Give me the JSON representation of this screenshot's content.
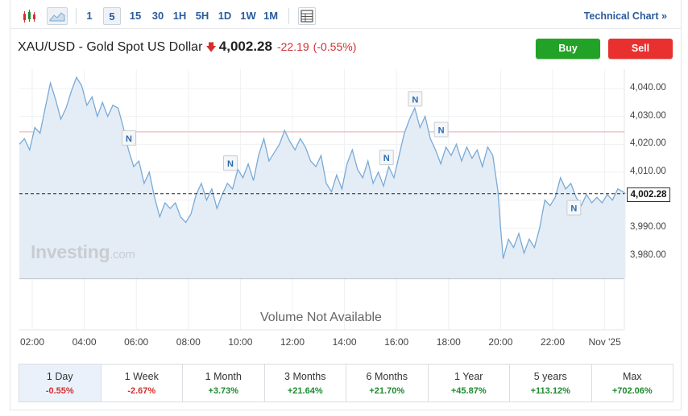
{
  "toolbar": {
    "intervals": [
      "1",
      "5",
      "15",
      "30",
      "1H",
      "5H",
      "1D",
      "1W",
      "1M"
    ],
    "active_interval": "5",
    "technical_chart_label": "Technical Chart »"
  },
  "header": {
    "instrument": "XAU/USD - Gold Spot US Dollar",
    "direction_icon": "down-arrow-icon",
    "price": "4,002.28",
    "change": "-22.19",
    "change_pct": "(-0.55%)"
  },
  "buttons": {
    "buy": "Buy",
    "sell": "Sell"
  },
  "watermark": {
    "brand": "Investing",
    "suffix": ".com"
  },
  "volume_text": "Volume Not Available",
  "colors": {
    "accent": "#2a5c9a",
    "positive": "#1d8a2f",
    "negative": "#d32f2f",
    "buy": "#22a327",
    "sell": "#e8312f",
    "series_line": "#7aaad6",
    "area_fill": "#e4edf6"
  },
  "periods": [
    {
      "label": "1 Day",
      "change": "-0.55%",
      "sign": "neg",
      "active": true
    },
    {
      "label": "1 Week",
      "change": "-2.67%",
      "sign": "neg",
      "active": false
    },
    {
      "label": "1 Month",
      "change": "+3.73%",
      "sign": "pos",
      "active": false
    },
    {
      "label": "3 Months",
      "change": "+21.64%",
      "sign": "pos",
      "active": false
    },
    {
      "label": "6 Months",
      "change": "+21.70%",
      "sign": "pos",
      "active": false
    },
    {
      "label": "1 Year",
      "change": "+45.87%",
      "sign": "pos",
      "active": false
    },
    {
      "label": "5 years",
      "change": "+113.12%",
      "sign": "pos",
      "active": false
    },
    {
      "label": "Max",
      "change": "+702.06%",
      "sign": "pos",
      "active": false
    }
  ],
  "chart_data": {
    "type": "area",
    "y_ticks": [
      "4,040.00",
      "4,030.00",
      "4,020.00",
      "4,010.00",
      "3,990.00",
      "3,980.00"
    ],
    "x_ticks": [
      "02:00",
      "04:00",
      "06:00",
      "08:00",
      "10:00",
      "12:00",
      "14:00",
      "16:00",
      "18:00",
      "20:00",
      "22:00",
      "Nov '25"
    ],
    "x_tick_hours": [
      2,
      4,
      6,
      8,
      10,
      12,
      14,
      16,
      18,
      20,
      22,
      24
    ],
    "ylim": [
      3976,
      4050
    ],
    "xlim_hours": [
      1.5,
      25
    ],
    "last_price_label": "4,002.28",
    "last_price": 4002.28,
    "reference_level": 4024.47,
    "news_marker_label": "N",
    "news_markers": [
      {
        "t": 5.7,
        "y": 4022
      },
      {
        "t": 9.6,
        "y": 4013
      },
      {
        "t": 16.7,
        "y": 4036
      },
      {
        "t": 15.6,
        "y": 4015
      },
      {
        "t": 17.7,
        "y": 4025
      },
      {
        "t": 22.8,
        "y": 3997
      }
    ],
    "series": [
      {
        "values": [
          [
            1.5,
            4020
          ],
          [
            1.7,
            4022
          ],
          [
            1.9,
            4018
          ],
          [
            2.1,
            4026
          ],
          [
            2.3,
            4024
          ],
          [
            2.5,
            4033
          ],
          [
            2.7,
            4042
          ],
          [
            2.9,
            4036
          ],
          [
            3.1,
            4029
          ],
          [
            3.3,
            4033
          ],
          [
            3.5,
            4039
          ],
          [
            3.7,
            4044
          ],
          [
            3.9,
            4041
          ],
          [
            4.1,
            4034
          ],
          [
            4.3,
            4037
          ],
          [
            4.5,
            4030
          ],
          [
            4.7,
            4035
          ],
          [
            4.9,
            4030
          ],
          [
            5.1,
            4034
          ],
          [
            5.3,
            4033
          ],
          [
            5.5,
            4026
          ],
          [
            5.7,
            4018
          ],
          [
            5.9,
            4012
          ],
          [
            6.1,
            4014
          ],
          [
            6.3,
            4006
          ],
          [
            6.5,
            4010
          ],
          [
            6.7,
            4001
          ],
          [
            6.9,
            3994
          ],
          [
            7.1,
            3999
          ],
          [
            7.3,
            3997
          ],
          [
            7.5,
            3999
          ],
          [
            7.7,
            3994
          ],
          [
            7.9,
            3992
          ],
          [
            8.1,
            3995
          ],
          [
            8.3,
            4002
          ],
          [
            8.5,
            4006
          ],
          [
            8.7,
            4000
          ],
          [
            8.9,
            4004
          ],
          [
            9.1,
            3997
          ],
          [
            9.3,
            4002
          ],
          [
            9.5,
            4006
          ],
          [
            9.7,
            4004
          ],
          [
            9.9,
            4011
          ],
          [
            10.1,
            4008
          ],
          [
            10.3,
            4013
          ],
          [
            10.5,
            4007
          ],
          [
            10.7,
            4016
          ],
          [
            10.9,
            4022
          ],
          [
            11.1,
            4014
          ],
          [
            11.3,
            4017
          ],
          [
            11.5,
            4020
          ],
          [
            11.7,
            4025
          ],
          [
            11.9,
            4021
          ],
          [
            12.1,
            4018
          ],
          [
            12.3,
            4022
          ],
          [
            12.5,
            4019
          ],
          [
            12.7,
            4014
          ],
          [
            12.9,
            4012
          ],
          [
            13.1,
            4016
          ],
          [
            13.3,
            4006
          ],
          [
            13.5,
            4003
          ],
          [
            13.7,
            4009
          ],
          [
            13.9,
            4004
          ],
          [
            14.1,
            4013
          ],
          [
            14.3,
            4018
          ],
          [
            14.5,
            4011
          ],
          [
            14.7,
            4008
          ],
          [
            14.9,
            4014
          ],
          [
            15.1,
            4006
          ],
          [
            15.3,
            4010
          ],
          [
            15.5,
            4005
          ],
          [
            15.7,
            4012
          ],
          [
            15.9,
            4008
          ],
          [
            16.1,
            4016
          ],
          [
            16.3,
            4024
          ],
          [
            16.5,
            4029
          ],
          [
            16.7,
            4033
          ],
          [
            16.9,
            4026
          ],
          [
            17.1,
            4030
          ],
          [
            17.3,
            4022
          ],
          [
            17.5,
            4018
          ],
          [
            17.7,
            4013
          ],
          [
            17.9,
            4019
          ],
          [
            18.1,
            4016
          ],
          [
            18.3,
            4020
          ],
          [
            18.5,
            4014
          ],
          [
            18.7,
            4019
          ],
          [
            18.9,
            4015
          ],
          [
            19.1,
            4018
          ],
          [
            19.3,
            4012
          ],
          [
            19.5,
            4019
          ],
          [
            19.7,
            4016
          ],
          [
            19.9,
            4003
          ],
          [
            20.0,
            3990
          ],
          [
            20.1,
            3979
          ],
          [
            20.3,
            3986
          ],
          [
            20.5,
            3983
          ],
          [
            20.7,
            3988
          ],
          [
            20.9,
            3981
          ],
          [
            21.1,
            3986
          ],
          [
            21.3,
            3983
          ],
          [
            21.5,
            3990
          ],
          [
            21.7,
            4000
          ],
          [
            21.9,
            3998
          ],
          [
            22.1,
            4001
          ],
          [
            22.3,
            4008
          ],
          [
            22.5,
            4004
          ],
          [
            22.7,
            4006
          ],
          [
            22.9,
            4001
          ],
          [
            23.1,
            3998
          ],
          [
            23.3,
            4002
          ],
          [
            23.5,
            3999
          ],
          [
            23.7,
            4001
          ],
          [
            23.9,
            3999
          ],
          [
            24.1,
            4002
          ],
          [
            24.3,
            4000
          ],
          [
            24.5,
            4004
          ],
          [
            24.7,
            4003
          ],
          [
            24.8,
            4002.28
          ]
        ]
      }
    ]
  }
}
